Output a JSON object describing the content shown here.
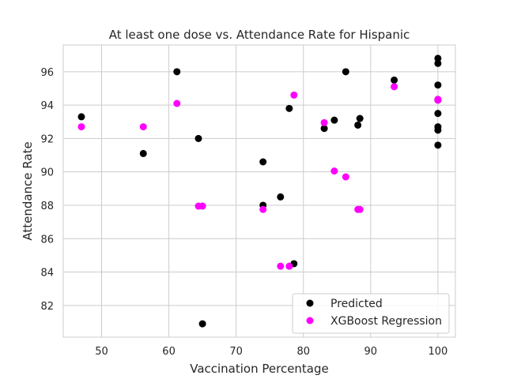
{
  "chart_data": {
    "type": "scatter",
    "title": "At least one dose vs. Attendance Rate for Hispanic",
    "xlabel": "Vaccination Percentage",
    "ylabel": "Attendance Rate",
    "xlim": [
      44.3,
      102.6
    ],
    "ylim": [
      80.1,
      97.6
    ],
    "xticks": [
      50,
      60,
      70,
      80,
      90,
      100
    ],
    "yticks": [
      82,
      84,
      86,
      88,
      90,
      92,
      94,
      96
    ],
    "grid": true,
    "legend_position": "lower-right",
    "series": [
      {
        "name": "Predicted",
        "color": "#000000",
        "points": [
          [
            47.0,
            93.3
          ],
          [
            56.2,
            91.1
          ],
          [
            61.2,
            96.0
          ],
          [
            64.4,
            92.0
          ],
          [
            65.0,
            80.9
          ],
          [
            74.0,
            90.6
          ],
          [
            74.0,
            88.0
          ],
          [
            76.6,
            88.5
          ],
          [
            77.9,
            93.8
          ],
          [
            78.6,
            84.5
          ],
          [
            83.1,
            92.6
          ],
          [
            84.6,
            93.1
          ],
          [
            86.3,
            96.0
          ],
          [
            88.1,
            92.8
          ],
          [
            88.4,
            93.2
          ],
          [
            93.5,
            95.5
          ],
          [
            100.0,
            96.8
          ],
          [
            100.0,
            96.5
          ],
          [
            100.0,
            95.2
          ],
          [
            100.0,
            94.3
          ],
          [
            100.0,
            93.5
          ],
          [
            100.0,
            92.7
          ],
          [
            100.0,
            92.5
          ],
          [
            100.0,
            91.6
          ]
        ]
      },
      {
        "name": "XGBoost Regression",
        "color": "#ff00ff",
        "points": [
          [
            47.0,
            92.7
          ],
          [
            56.2,
            92.7
          ],
          [
            61.2,
            94.1
          ],
          [
            64.4,
            87.95
          ],
          [
            65.0,
            87.95
          ],
          [
            74.0,
            87.75
          ],
          [
            76.6,
            84.35
          ],
          [
            77.9,
            84.35
          ],
          [
            78.6,
            94.6
          ],
          [
            83.1,
            92.95
          ],
          [
            84.6,
            90.05
          ],
          [
            86.3,
            89.7
          ],
          [
            88.1,
            87.75
          ],
          [
            88.4,
            87.75
          ],
          [
            93.5,
            95.1
          ],
          [
            100.0,
            94.3
          ],
          [
            100.0,
            94.35
          ]
        ]
      }
    ]
  }
}
